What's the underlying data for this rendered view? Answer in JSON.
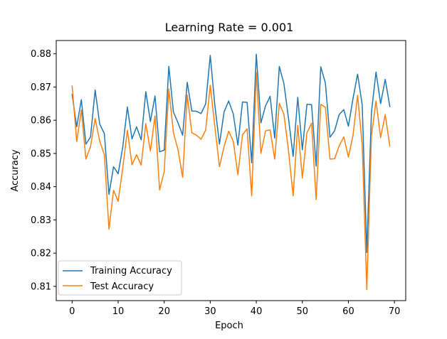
{
  "chart_data": {
    "type": "line",
    "title": "Learning Rate = 0.001",
    "xlabel": "Epoch",
    "ylabel": "Accuracy",
    "xlim": [
      -3.45,
      72.45
    ],
    "ylim": [
      0.8057,
      0.884
    ],
    "x_ticks": [
      0,
      10,
      20,
      30,
      40,
      50,
      60,
      70
    ],
    "x_tick_labels": [
      "0",
      "10",
      "20",
      "30",
      "40",
      "50",
      "60",
      "70"
    ],
    "y_ticks": [
      0.81,
      0.82,
      0.83,
      0.84,
      0.85,
      0.86,
      0.87,
      0.88
    ],
    "y_tick_labels": [
      "0.81",
      "0.82",
      "0.83",
      "0.84",
      "0.85",
      "0.86",
      "0.87",
      "0.88"
    ],
    "grid": false,
    "legend": {
      "position": "lower-left"
    },
    "x": [
      0,
      1,
      2,
      3,
      4,
      5,
      6,
      7,
      8,
      9,
      10,
      11,
      12,
      13,
      14,
      15,
      16,
      17,
      18,
      19,
      20,
      21,
      22,
      23,
      24,
      25,
      26,
      27,
      28,
      29,
      30,
      31,
      32,
      33,
      34,
      35,
      36,
      37,
      38,
      39,
      40,
      41,
      42,
      43,
      44,
      45,
      46,
      47,
      48,
      49,
      50,
      51,
      52,
      53,
      54,
      55,
      56,
      57,
      58,
      59,
      60,
      61,
      62,
      63,
      64,
      65,
      66,
      67,
      68,
      69
    ],
    "series": [
      {
        "name": "Training Accuracy",
        "color": "#1f77b4",
        "values": [
          0.8677,
          0.858,
          0.8662,
          0.8528,
          0.855,
          0.8691,
          0.8588,
          0.856,
          0.8377,
          0.846,
          0.8439,
          0.8519,
          0.864,
          0.8544,
          0.858,
          0.8541,
          0.8686,
          0.8596,
          0.8673,
          0.8505,
          0.851,
          0.8762,
          0.8625,
          0.8592,
          0.8555,
          0.8714,
          0.8628,
          0.8627,
          0.862,
          0.8649,
          0.8795,
          0.8645,
          0.8528,
          0.8625,
          0.8658,
          0.8619,
          0.8525,
          0.8655,
          0.8654,
          0.8472,
          0.8799,
          0.8592,
          0.8643,
          0.8672,
          0.8546,
          0.8762,
          0.871,
          0.8605,
          0.8491,
          0.8669,
          0.8511,
          0.8648,
          0.8647,
          0.8462,
          0.8761,
          0.8712,
          0.8549,
          0.8568,
          0.8617,
          0.8632,
          0.8582,
          0.8665,
          0.8739,
          0.8646,
          0.8202,
          0.8623,
          0.8745,
          0.865,
          0.8723,
          0.8641
        ]
      },
      {
        "name": "Test Accuracy",
        "color": "#ff7f0e",
        "values": [
          0.8703,
          0.8536,
          0.8631,
          0.8483,
          0.8521,
          0.8605,
          0.8537,
          0.8496,
          0.8272,
          0.8389,
          0.8356,
          0.8457,
          0.857,
          0.8466,
          0.8496,
          0.8465,
          0.859,
          0.8507,
          0.8613,
          0.839,
          0.8445,
          0.8694,
          0.8563,
          0.8511,
          0.8428,
          0.8676,
          0.8562,
          0.8555,
          0.8543,
          0.857,
          0.8705,
          0.8581,
          0.846,
          0.8521,
          0.8567,
          0.8537,
          0.8436,
          0.8556,
          0.8574,
          0.8372,
          0.8744,
          0.85,
          0.8568,
          0.8571,
          0.8483,
          0.8651,
          0.8618,
          0.8508,
          0.8372,
          0.8585,
          0.8426,
          0.8562,
          0.8591,
          0.8361,
          0.8648,
          0.8639,
          0.8483,
          0.8484,
          0.8523,
          0.855,
          0.8489,
          0.8554,
          0.8675,
          0.8525,
          0.809,
          0.8553,
          0.8658,
          0.8548,
          0.8617,
          0.8522
        ]
      }
    ]
  }
}
